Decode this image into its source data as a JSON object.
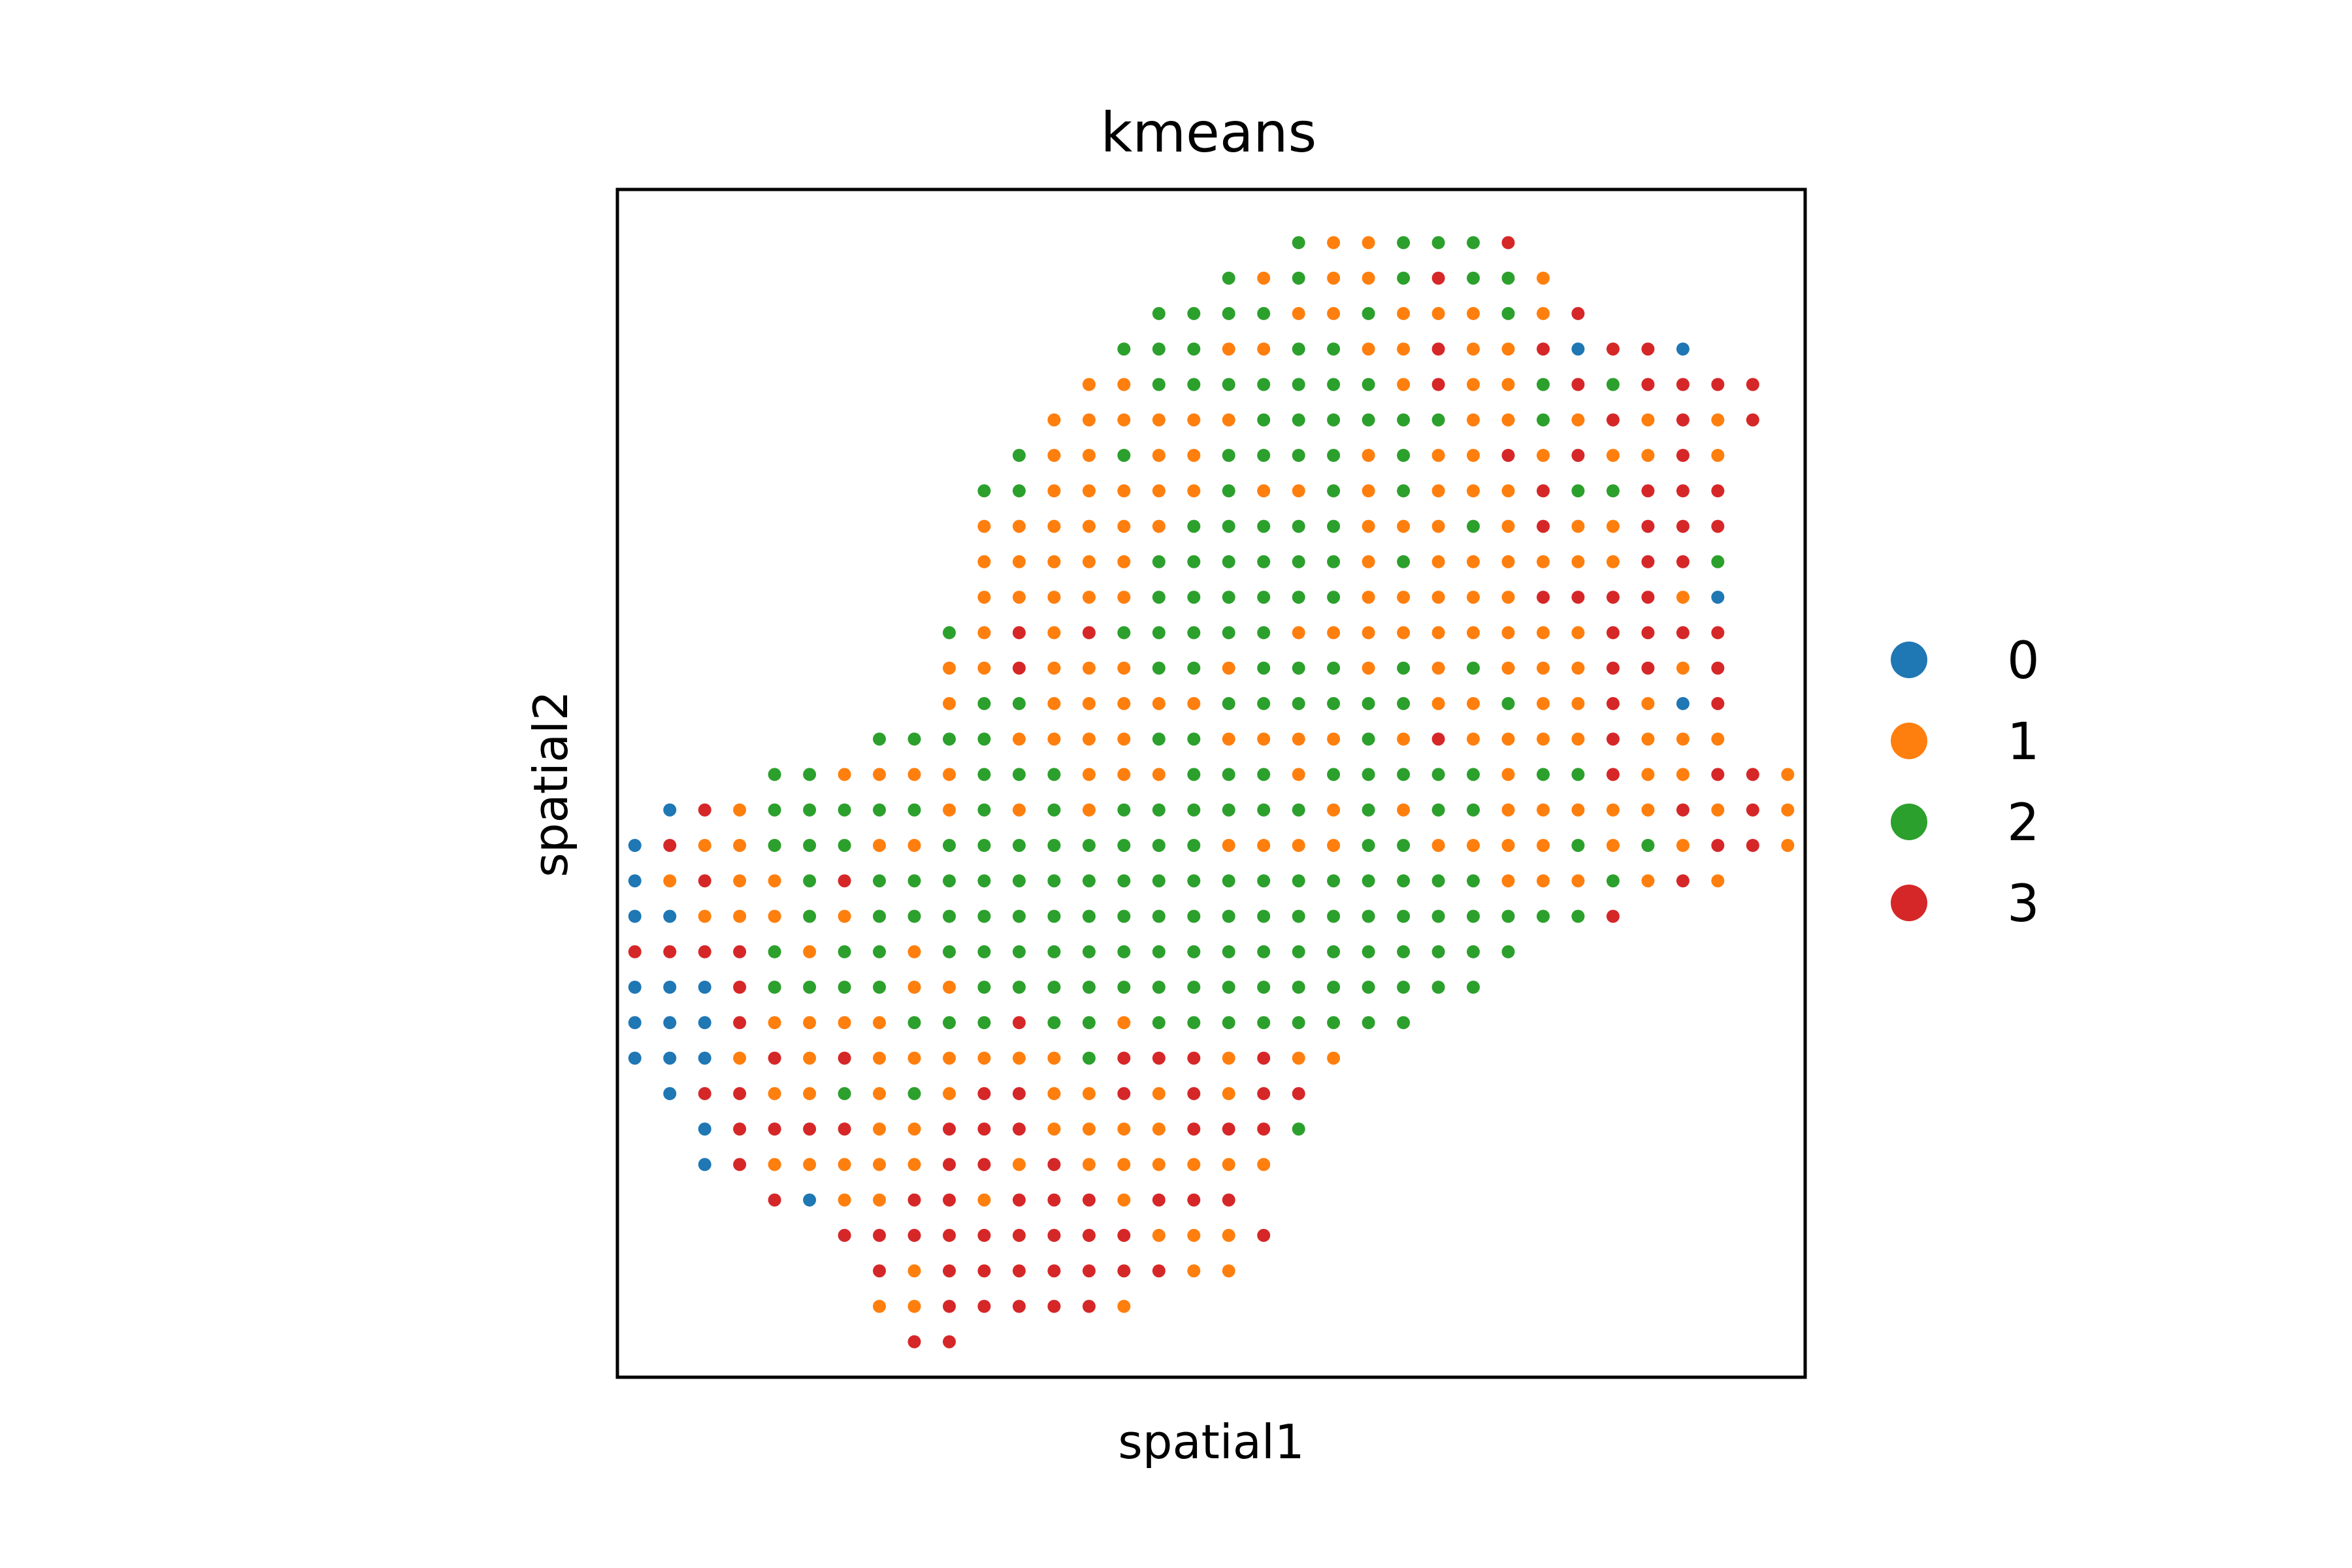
{
  "chart_data": {
    "type": "scatter",
    "title": "kmeans",
    "xlabel": "spatial1",
    "ylabel": "spatial2",
    "xlim": [
      -0.5,
      33.5
    ],
    "ylim": [
      -1.5,
      32
    ],
    "grid": false,
    "legend_position": "right",
    "colors": {
      "0": "#1f77b4",
      "1": "#ff7f0e",
      "2": "#2ca02c",
      "3": "#d62728"
    },
    "categories": [
      "0",
      "1",
      "2",
      "3"
    ],
    "rows": [
      {
        "y": 0,
        "x0": 19,
        "labels": "2112223"
      },
      {
        "y": 1,
        "x0": 17,
        "labels": "2121123221"
      },
      {
        "y": 2,
        "x0": 15,
        "labels": "2222112111213"
      },
      {
        "y": 3,
        "x0": 14,
        "labels": "22211221131130330"
      },
      {
        "y": 4,
        "x0": 13,
        "labels": "11222222213112323333"
      },
      {
        "y": 5,
        "x0": 12,
        "labels": "111111222222112131313"
      },
      {
        "y": 6,
        "x0": 11,
        "labels": "211211222212113131131"
      },
      {
        "y": 7,
        "x0": 10,
        "labels": "2211111211212111322333"
      },
      {
        "y": 8,
        "x0": 10,
        "labels": "1111112222211121311333"
      },
      {
        "y": 9,
        "x0": 10,
        "labels": "1111122222212111111332"
      },
      {
        "y": 10,
        "x0": 10,
        "labels": "1111122222211111333310"
      },
      {
        "y": 11,
        "x0": 9,
        "labels": "21313222221111111113333"
      },
      {
        "y": 12,
        "x0": 9,
        "labels": "11311122122212121113313"
      },
      {
        "y": 13,
        "x0": 9,
        "labels": "12211111222222112113103"
      },
      {
        "y": 14,
        "x0": 7,
        "labels": "2222111122111121311113111"
      },
      {
        "y": 15,
        "x0": 4,
        "labels": "221111222111222122222122311331"
      },
      {
        "y": 16,
        "x0": 1,
        "labels": "031222221212122222212122111113131"
      },
      {
        "y": 17,
        "x0": 0,
        "labels": "0311222112222222211112211112121331"
      },
      {
        "y": 18,
        "x0": 0,
        "labels": "01311232222222222222222221112131"
      },
      {
        "y": 19,
        "x0": 0,
        "labels": "00111212222222222222222222223"
      },
      {
        "y": 20,
        "x0": 0,
        "labels": "33332122122222222222222222"
      },
      {
        "y": 21,
        "x0": 0,
        "labels": "0003222211222222222222222"
      },
      {
        "y": 22,
        "x0": 0,
        "labels": "00031111222322122222222"
      },
      {
        "y": 23,
        "x0": 0,
        "labels": "000131311111123331311"
      },
      {
        "y": 24,
        "x0": 1,
        "labels": "0331121213311313133"
      },
      {
        "y": 25,
        "x0": 2,
        "labels": "033331133311113332"
      },
      {
        "y": 26,
        "x0": 2,
        "labels": "03111113313111111"
      },
      {
        "y": 27,
        "x0": 4,
        "labels": "30113313331333"
      },
      {
        "y": 28,
        "x0": 6,
        "labels": "3333333331113"
      },
      {
        "y": 29,
        "x0": 7,
        "labels": "31333333311"
      },
      {
        "y": 30,
        "x0": 7,
        "labels": "11333331"
      },
      {
        "y": 31,
        "x0": 8,
        "labels": "33"
      }
    ]
  }
}
